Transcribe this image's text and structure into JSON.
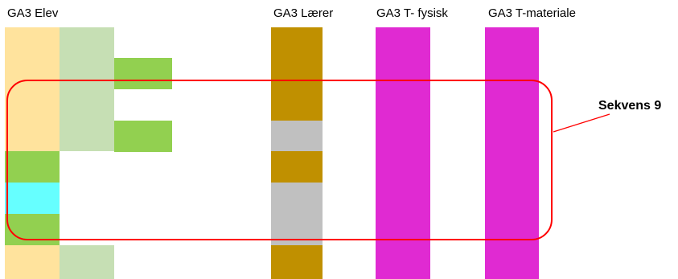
{
  "columns": {
    "elev": {
      "title": "GA3 Elev"
    },
    "laerer": {
      "title": "GA3 Lærer"
    },
    "fysisk": {
      "title": "GA3 T- fysisk"
    },
    "materiale": {
      "title": "GA3 T-materiale"
    }
  },
  "sequence": {
    "label": "Sekvens 9"
  },
  "colors": {
    "pale_yellow": "#ffe39d",
    "pale_green": "#c6dfb4",
    "green": "#92d050",
    "cyan": "#66ffff",
    "dark_gold": "#c09000",
    "gray": "#c0c0c0",
    "magenta": "#e02ad2",
    "highlight_red": "#ff0000"
  }
}
